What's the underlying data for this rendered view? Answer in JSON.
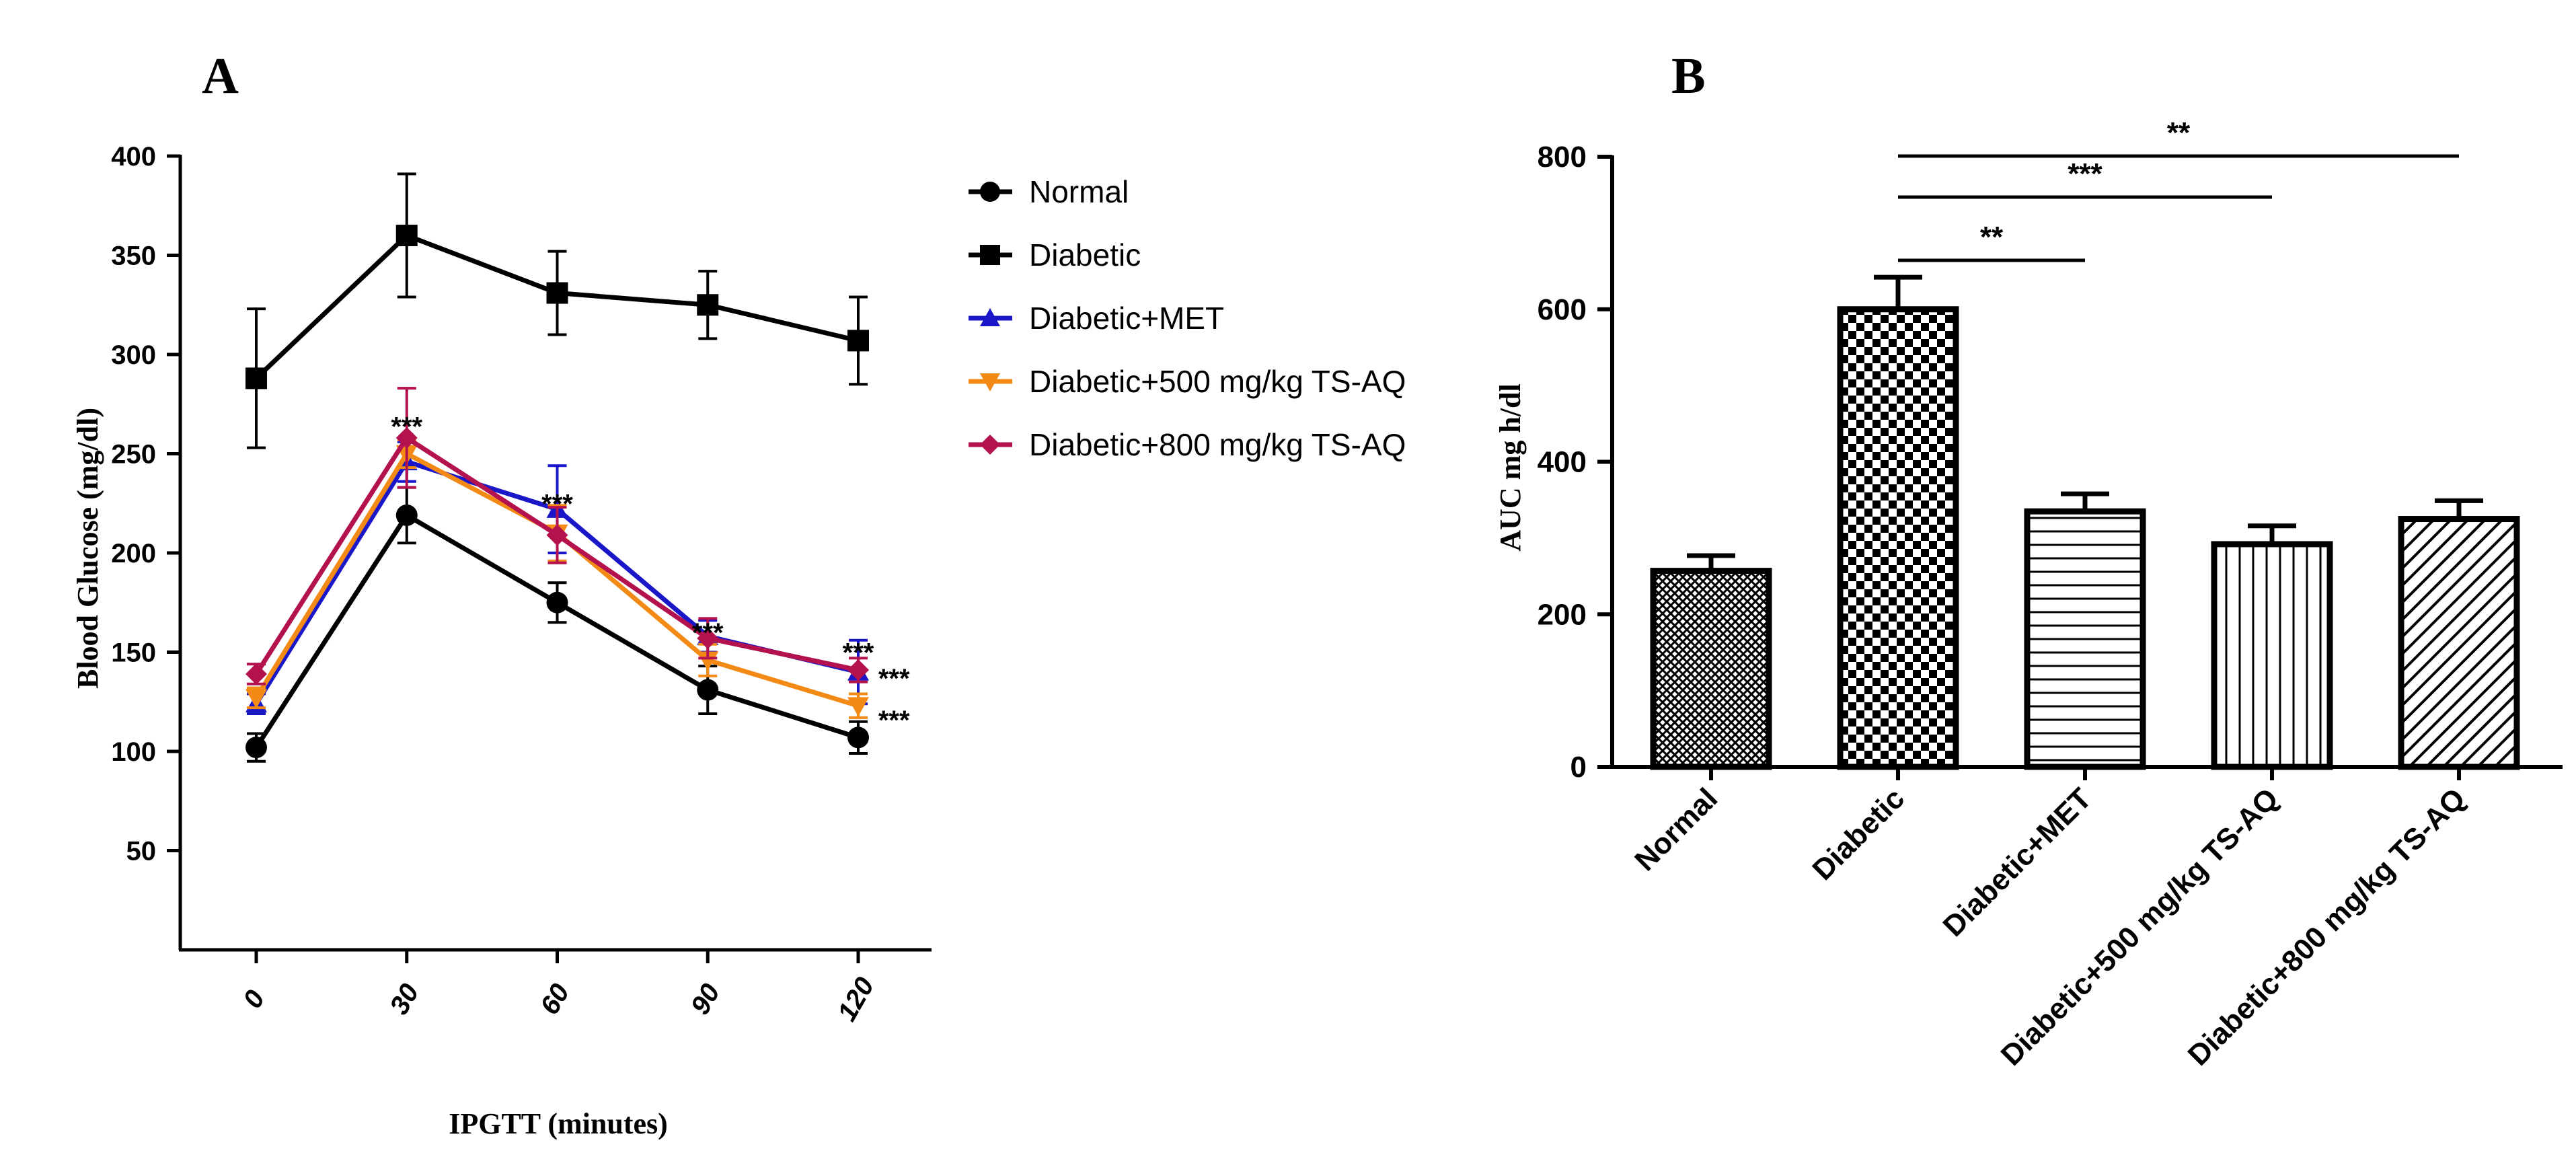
{
  "chart_data": [
    {
      "panel_label": "A",
      "type": "line",
      "xlabel": "IPGTT (minutes)",
      "ylabel": "Blood Glucose (mg/dl)",
      "x": [
        0,
        30,
        60,
        90,
        120
      ],
      "x_tick_labels": [
        "0",
        "30",
        "60",
        "90",
        "120"
      ],
      "ylim": [
        0,
        400
      ],
      "y_ticks": [
        50,
        100,
        150,
        200,
        250,
        300,
        350,
        400
      ],
      "y_tick_labels": [
        "50",
        "100",
        "150",
        "200",
        "250",
        "300",
        "350",
        "400"
      ],
      "legend_position": "right",
      "series": [
        {
          "name": "Normal",
          "color": "#000000",
          "marker": "circle",
          "values": [
            102,
            219,
            175,
            131,
            107
          ],
          "errors": [
            7,
            14,
            10,
            12,
            8
          ]
        },
        {
          "name": "Diabetic",
          "color": "#000000",
          "marker": "square",
          "values": [
            288,
            360,
            331,
            325,
            307
          ],
          "errors": [
            35,
            31,
            21,
            17,
            22
          ]
        },
        {
          "name": "Diabetic+MET",
          "color": "#1a17c9",
          "marker": "triangle-up",
          "values": [
            124,
            246,
            222,
            158,
            140
          ],
          "errors": [
            5,
            10,
            22,
            8,
            16
          ]
        },
        {
          "name": "Diabetic+500 mg/kg TS-AQ",
          "color": "#f28a15",
          "marker": "triangle-down",
          "values": [
            127,
            250,
            210,
            146,
            123
          ],
          "errors": [
            5,
            7,
            14,
            8,
            6
          ]
        },
        {
          "name": "Diabetic+800 mg/kg TS-AQ",
          "color": "#b3124f",
          "marker": "diamond",
          "values": [
            139,
            258,
            209,
            157,
            141
          ],
          "errors": [
            5,
            25,
            14,
            10,
            6
          ]
        }
      ],
      "annotations": [
        {
          "text": "***",
          "x": 30,
          "y": 266,
          "anchor": "middle"
        },
        {
          "text": "***",
          "x": 60,
          "y": 227,
          "anchor": "middle"
        },
        {
          "text": "***",
          "x": 90,
          "y": 162,
          "anchor": "middle"
        },
        {
          "text": "***",
          "x": 120,
          "y": 152,
          "anchor": "middle"
        },
        {
          "text": "***",
          "x": 124,
          "y": 139,
          "anchor": "start"
        },
        {
          "text": "***",
          "x": 124,
          "y": 118,
          "anchor": "start"
        }
      ]
    },
    {
      "panel_label": "B",
      "type": "bar",
      "ylabel": "AUC mg h/dl",
      "categories": [
        "Normal",
        "Diabetic",
        "Diabetic+MET",
        "Diabetic+500 mg/kg TS-AQ",
        "Diabetic+800 mg/kg TS-AQ"
      ],
      "values": [
        257,
        600,
        335,
        292,
        325
      ],
      "errors": [
        20,
        42,
        23,
        24,
        24
      ],
      "patterns": [
        "fine-crosshatch",
        "checker",
        "horizontal-lines",
        "vertical-lines",
        "diagonal-lines"
      ],
      "ylim": [
        0,
        800
      ],
      "y_ticks": [
        0,
        200,
        400,
        600,
        800
      ],
      "y_tick_labels": [
        "0",
        "200",
        "400",
        "600",
        "800"
      ],
      "significance": [
        {
          "from": "Diabetic",
          "to": "Diabetic+MET",
          "label": "**"
        },
        {
          "from": "Diabetic",
          "to": "Diabetic+500 mg/kg TS-AQ",
          "label": "***"
        },
        {
          "from": "Diabetic",
          "to": "Diabetic+800 mg/kg TS-AQ",
          "label": "**"
        }
      ]
    }
  ]
}
